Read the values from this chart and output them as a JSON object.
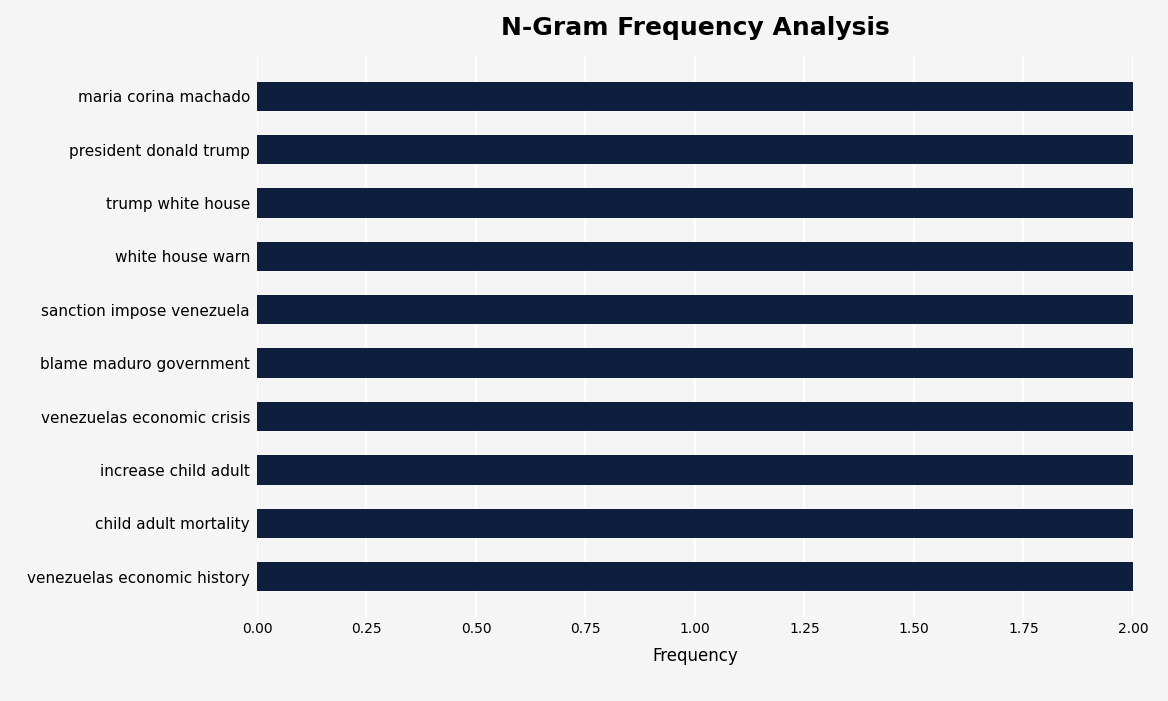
{
  "title": "N-Gram Frequency Analysis",
  "categories": [
    "venezuelas economic history",
    "child adult mortality",
    "increase child adult",
    "venezuelas economic crisis",
    "blame maduro government",
    "sanction impose venezuela",
    "white house warn",
    "trump white house",
    "president donald trump",
    "maria corina machado"
  ],
  "values": [
    2.0,
    2.0,
    2.0,
    2.0,
    2.0,
    2.0,
    2.0,
    2.0,
    2.0,
    2.0
  ],
  "bar_color": "#0d1f3c",
  "background_color": "#f5f5f5",
  "xlabel": "Frequency",
  "xlim": [
    0,
    2.0
  ],
  "xticks": [
    0.0,
    0.25,
    0.5,
    0.75,
    1.0,
    1.25,
    1.5,
    1.75,
    2.0
  ],
  "xtick_labels": [
    "0.00",
    "0.25",
    "0.50",
    "0.75",
    "1.00",
    "1.25",
    "1.50",
    "1.75",
    "2.00"
  ],
  "title_fontsize": 18,
  "label_fontsize": 11,
  "tick_fontsize": 10,
  "xlabel_fontsize": 12,
  "bar_height": 0.55
}
